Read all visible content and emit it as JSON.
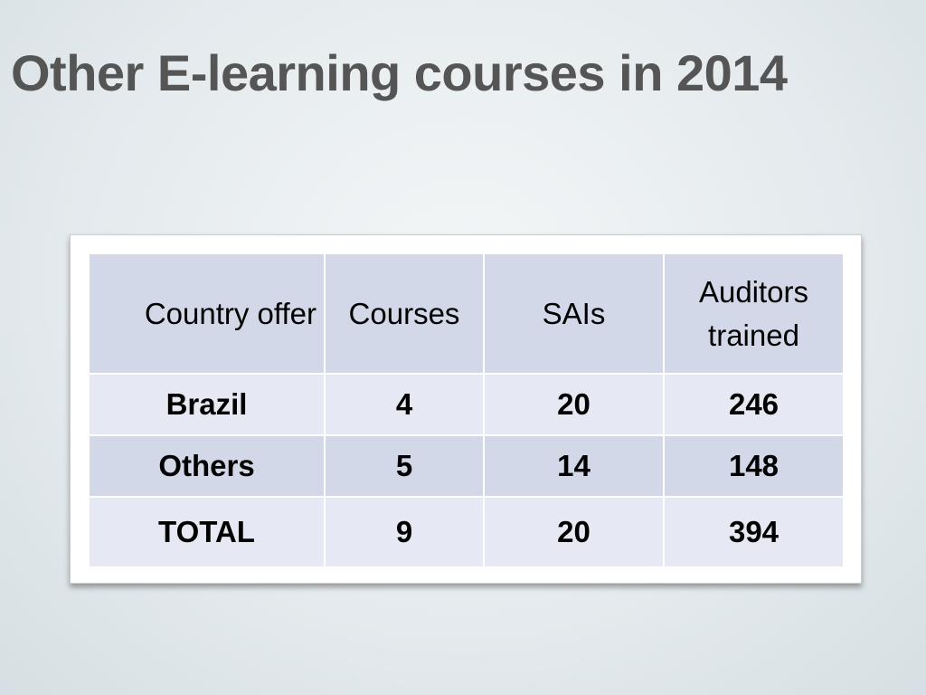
{
  "header": {
    "title": "Other E-learning courses in 2014"
  },
  "table": {
    "columns": [
      "Country offer",
      "Courses",
      "SAIs",
      "Auditors trained"
    ],
    "rows": [
      [
        "Brazil",
        4,
        20,
        246
      ],
      [
        "Others",
        5,
        14,
        148
      ],
      [
        "TOTAL",
        9,
        20,
        394
      ]
    ]
  }
}
